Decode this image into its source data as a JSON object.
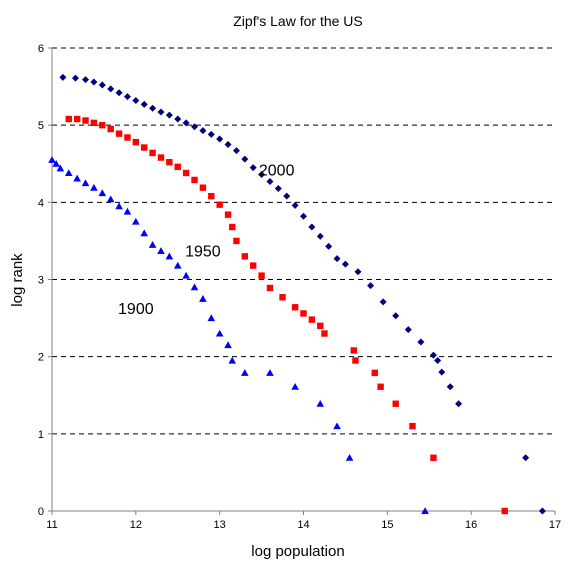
{
  "chart_data": {
    "type": "scatter",
    "title": "Zipf's Law for the US",
    "xlabel": "log population",
    "ylabel": "log rank",
    "xlim": [
      11,
      17
    ],
    "ylim": [
      0,
      6
    ],
    "x_ticks": [
      "11",
      "12",
      "13",
      "14",
      "15",
      "16",
      "17"
    ],
    "y_ticks": [
      "0",
      "1",
      "2",
      "3",
      "4",
      "5",
      "6"
    ],
    "grid": "horizontal-dashed",
    "legend": "none",
    "series": [
      {
        "name": "2000",
        "color": "#00007F",
        "marker": "diamond",
        "points": [
          [
            11.13,
            5.62
          ],
          [
            11.28,
            5.61
          ],
          [
            11.4,
            5.59
          ],
          [
            11.5,
            5.56
          ],
          [
            11.6,
            5.52
          ],
          [
            11.7,
            5.47
          ],
          [
            11.8,
            5.42
          ],
          [
            11.9,
            5.37
          ],
          [
            12.0,
            5.32
          ],
          [
            12.1,
            5.27
          ],
          [
            12.2,
            5.22
          ],
          [
            12.3,
            5.17
          ],
          [
            12.4,
            5.13
          ],
          [
            12.5,
            5.08
          ],
          [
            12.6,
            5.03
          ],
          [
            12.7,
            4.98
          ],
          [
            12.8,
            4.93
          ],
          [
            12.9,
            4.88
          ],
          [
            13.0,
            4.82
          ],
          [
            13.1,
            4.75
          ],
          [
            13.2,
            4.67
          ],
          [
            13.3,
            4.56
          ],
          [
            13.4,
            4.45
          ],
          [
            13.5,
            4.36
          ],
          [
            13.6,
            4.27
          ],
          [
            13.7,
            4.18
          ],
          [
            13.8,
            4.08
          ],
          [
            13.9,
            3.96
          ],
          [
            14.0,
            3.82
          ],
          [
            14.1,
            3.68
          ],
          [
            14.2,
            3.56
          ],
          [
            14.3,
            3.43
          ],
          [
            14.4,
            3.27
          ],
          [
            14.5,
            3.2
          ],
          [
            14.65,
            3.1
          ],
          [
            14.8,
            2.92
          ],
          [
            14.95,
            2.71
          ],
          [
            15.1,
            2.53
          ],
          [
            15.25,
            2.35
          ],
          [
            15.4,
            2.19
          ],
          [
            15.55,
            2.02
          ],
          [
            15.6,
            1.95
          ],
          [
            15.65,
            1.8
          ],
          [
            15.75,
            1.61
          ],
          [
            15.85,
            1.39
          ],
          [
            16.65,
            0.69
          ],
          [
            16.85,
            0.0
          ]
        ]
      },
      {
        "name": "1950",
        "color": "#FF0000",
        "marker": "square",
        "points": [
          [
            11.2,
            5.08
          ],
          [
            11.3,
            5.08
          ],
          [
            11.4,
            5.06
          ],
          [
            11.5,
            5.03
          ],
          [
            11.6,
            5.0
          ],
          [
            11.7,
            4.95
          ],
          [
            11.8,
            4.89
          ],
          [
            11.9,
            4.84
          ],
          [
            12.0,
            4.78
          ],
          [
            12.1,
            4.71
          ],
          [
            12.2,
            4.64
          ],
          [
            12.3,
            4.58
          ],
          [
            12.4,
            4.52
          ],
          [
            12.5,
            4.46
          ],
          [
            12.6,
            4.38
          ],
          [
            12.7,
            4.29
          ],
          [
            12.8,
            4.19
          ],
          [
            12.9,
            4.08
          ],
          [
            13.0,
            3.97
          ],
          [
            13.1,
            3.84
          ],
          [
            13.15,
            3.68
          ],
          [
            13.2,
            3.5
          ],
          [
            13.3,
            3.3
          ],
          [
            13.4,
            3.18
          ],
          [
            13.5,
            3.05
          ],
          [
            13.6,
            2.89
          ],
          [
            13.75,
            2.77
          ],
          [
            13.9,
            2.64
          ],
          [
            14.0,
            2.56
          ],
          [
            14.1,
            2.48
          ],
          [
            14.2,
            2.4
          ],
          [
            14.25,
            2.3
          ],
          [
            14.6,
            2.08
          ],
          [
            14.62,
            1.95
          ],
          [
            14.85,
            1.79
          ],
          [
            14.92,
            1.61
          ],
          [
            15.1,
            1.39
          ],
          [
            15.3,
            1.1
          ],
          [
            15.55,
            0.69
          ],
          [
            16.4,
            0.0
          ]
        ]
      },
      {
        "name": "1900",
        "color": "#0000FF",
        "marker": "triangle",
        "points": [
          [
            11.0,
            4.55
          ],
          [
            11.05,
            4.5
          ],
          [
            11.1,
            4.44
          ],
          [
            11.2,
            4.38
          ],
          [
            11.3,
            4.31
          ],
          [
            11.4,
            4.25
          ],
          [
            11.5,
            4.19
          ],
          [
            11.6,
            4.12
          ],
          [
            11.7,
            4.04
          ],
          [
            11.8,
            3.95
          ],
          [
            11.9,
            3.88
          ],
          [
            12.0,
            3.75
          ],
          [
            12.1,
            3.6
          ],
          [
            12.2,
            3.45
          ],
          [
            12.3,
            3.37
          ],
          [
            12.4,
            3.3
          ],
          [
            12.5,
            3.18
          ],
          [
            12.6,
            3.05
          ],
          [
            12.7,
            2.9
          ],
          [
            12.8,
            2.75
          ],
          [
            12.9,
            2.5
          ],
          [
            13.0,
            2.3
          ],
          [
            13.1,
            2.15
          ],
          [
            13.15,
            1.95
          ],
          [
            13.3,
            1.79
          ],
          [
            13.6,
            1.79
          ],
          [
            13.9,
            1.61
          ],
          [
            14.2,
            1.39
          ],
          [
            14.4,
            1.1
          ],
          [
            14.55,
            0.69
          ],
          [
            15.45,
            0.0
          ]
        ]
      }
    ],
    "annotations": [
      {
        "text": "2000",
        "x": 13.68,
        "y": 4.35
      },
      {
        "text": "1950",
        "x": 12.8,
        "y": 3.3
      },
      {
        "text": "1900",
        "x": 12.0,
        "y": 2.55
      }
    ]
  }
}
